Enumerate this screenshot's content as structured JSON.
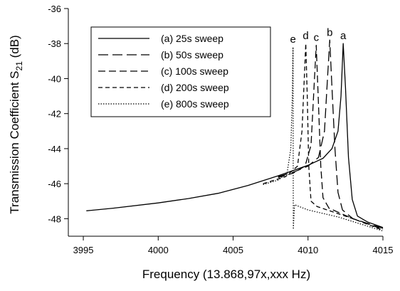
{
  "chart_data": {
    "type": "line",
    "xlabel": "Frequency (13.868,97x,xxx Hz)",
    "ylabel": "Transmission Coefficient S",
    "ylabel_sub": "21",
    "ylabel_unit": " (dB)",
    "xlim": [
      3994,
      4015
    ],
    "ylim": [
      -49,
      -36
    ],
    "x_ticks": [
      3995,
      4000,
      4005,
      4010,
      4015
    ],
    "y_ticks": [
      -36,
      -38,
      -40,
      -42,
      -44,
      -46,
      -48
    ],
    "grid": false,
    "legend_position": "top-left",
    "series": [
      {
        "name": "(a) 25s sweep",
        "letter": "a",
        "dash": "",
        "points": [
          [
            3995.2,
            -47.55
          ],
          [
            3997,
            -47.4
          ],
          [
            4000,
            -47.1
          ],
          [
            4002,
            -46.85
          ],
          [
            4004,
            -46.55
          ],
          [
            4006,
            -46.1
          ],
          [
            4008,
            -45.55
          ],
          [
            4009,
            -45.25
          ],
          [
            4010,
            -44.95
          ],
          [
            4011,
            -44.55
          ],
          [
            4011.6,
            -44.0
          ],
          [
            4012,
            -43.0
          ],
          [
            4012.2,
            -41.0
          ],
          [
            4012.35,
            -38.0
          ],
          [
            4012.5,
            -40.5
          ],
          [
            4012.7,
            -44.5
          ],
          [
            4012.95,
            -46.9
          ],
          [
            4013.3,
            -47.85
          ],
          [
            4014,
            -48.2
          ],
          [
            4015,
            -48.5
          ]
        ]
      },
      {
        "name": "(b) 50s sweep",
        "letter": "b",
        "dash": "14,6",
        "points": [
          [
            4008,
            -45.6
          ],
          [
            4009,
            -45.35
          ],
          [
            4010,
            -45.0
          ],
          [
            4010.7,
            -44.5
          ],
          [
            4011.1,
            -43.0
          ],
          [
            4011.3,
            -40.0
          ],
          [
            4011.45,
            -37.8
          ],
          [
            4011.6,
            -40.5
          ],
          [
            4011.8,
            -44.0
          ],
          [
            4012.0,
            -46.5
          ],
          [
            4012.3,
            -47.5
          ],
          [
            4013,
            -48.0
          ],
          [
            4015,
            -48.55
          ]
        ]
      },
      {
        "name": "(c) 100s sweep",
        "letter": "c",
        "dash": "10,5",
        "points": [
          [
            4008,
            -45.65
          ],
          [
            4009,
            -45.4
          ],
          [
            4009.8,
            -45.0
          ],
          [
            4010.2,
            -43.8
          ],
          [
            4010.4,
            -40.5
          ],
          [
            4010.55,
            -38.1
          ],
          [
            4010.7,
            -41.5
          ],
          [
            4010.85,
            -45.0
          ],
          [
            4011.0,
            -46.8
          ],
          [
            4011.4,
            -47.4
          ],
          [
            4013,
            -48.0
          ],
          [
            4015,
            -48.6
          ]
        ]
      },
      {
        "name": "(d) 200s sweep",
        "letter": "d",
        "dash": "6,4",
        "points": [
          [
            4007,
            -46.0
          ],
          [
            4008.5,
            -45.6
          ],
          [
            4009.3,
            -45.0
          ],
          [
            4009.6,
            -43.0
          ],
          [
            4009.75,
            -40.0
          ],
          [
            4009.85,
            -38.0
          ],
          [
            4009.95,
            -41.0
          ],
          [
            4010.05,
            -45.0
          ],
          [
            4010.2,
            -47.0
          ],
          [
            4010.6,
            -47.3
          ],
          [
            4013,
            -48.0
          ],
          [
            4015,
            -48.65
          ]
        ]
      },
      {
        "name": "(e) 800s sweep",
        "letter": "e",
        "dash": "1.5,2",
        "points": [
          [
            4007,
            -46.05
          ],
          [
            4008,
            -45.8
          ],
          [
            4008.6,
            -45.4
          ],
          [
            4008.85,
            -44.0
          ],
          [
            4008.95,
            -41.0
          ],
          [
            4009.0,
            -38.2
          ],
          [
            4009.02,
            -48.6
          ],
          [
            4009.1,
            -47.2
          ],
          [
            4010,
            -47.5
          ],
          [
            4012,
            -47.9
          ],
          [
            4015,
            -48.7
          ]
        ]
      }
    ]
  }
}
